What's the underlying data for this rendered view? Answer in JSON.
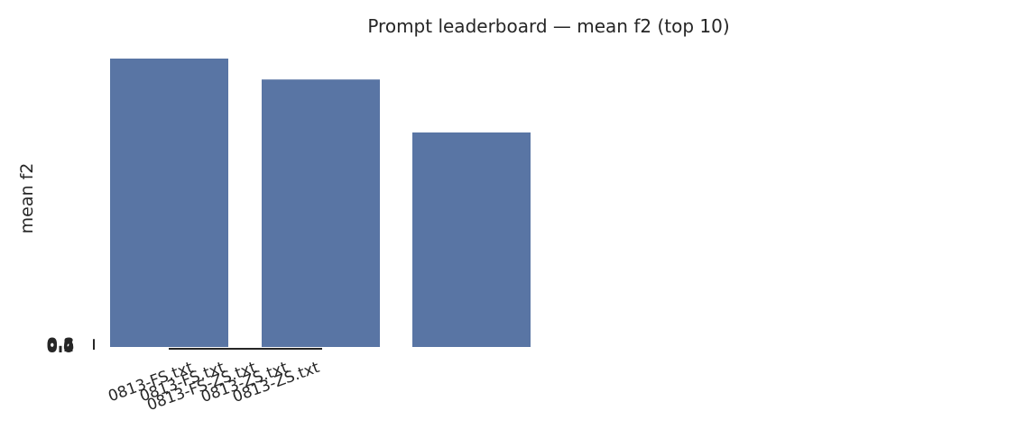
{
  "chart_data": {
    "type": "bar",
    "title": "Prompt leaderboard — mean f2 (top 10)",
    "ylabel": "mean f2",
    "values": [
      0.8,
      0.742,
      0.595
    ],
    "color": "#5975a4",
    "ylim": [
      0,
      0.85
    ],
    "yticks": [
      {
        "value": 0,
        "label": "0.0"
      },
      {
        "value": 0.2,
        "label": "0.2"
      },
      {
        "value": 0.4,
        "label": "0.4"
      },
      {
        "value": 0.6,
        "label": "0.6"
      },
      {
        "value": 0.8,
        "label": "0.8"
      }
    ],
    "tick_labels": [
      "0813-FS.txt",
      "0813-FS.txt",
      "0813-FS-ZS.txt",
      "0813-ZS.txt",
      "0813-ZS.txt"
    ]
  }
}
